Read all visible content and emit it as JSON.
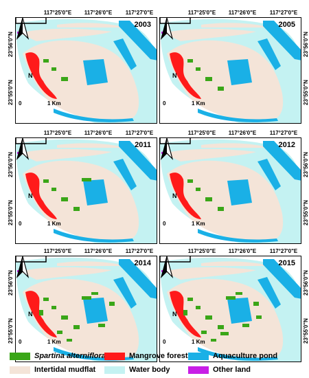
{
  "axes": {
    "lon_labels": [
      "117°25'0\"E",
      "117°26'0\"E",
      "117°27'0\"E"
    ],
    "lat_labels": [
      "23°56'0\"N",
      "23°55'0\"N"
    ]
  },
  "north_label": "N",
  "scale": {
    "zero": "0",
    "km": "1 Km"
  },
  "panels": [
    {
      "year": "2003"
    },
    {
      "year": "2005"
    },
    {
      "year": "2011"
    },
    {
      "year": "2012"
    },
    {
      "year": "2014"
    },
    {
      "year": "2015"
    }
  ],
  "legend": [
    {
      "label": "Spartina alterniflora",
      "color": "#3aa618",
      "italic": true
    },
    {
      "label": "Mangrove forest",
      "color": "#ff1a1a",
      "italic": false
    },
    {
      "label": "Aquaculture pond",
      "color": "#1ab0e6",
      "italic": false
    },
    {
      "label": "Intertidal mudflat",
      "color": "#f4e4d8",
      "italic": false
    },
    {
      "label": "Water body",
      "color": "#c4f2f2",
      "italic": false
    },
    {
      "label": "Other land",
      "color": "#c81ee6",
      "italic": false
    }
  ],
  "colors": {
    "water": "#c4f2f2",
    "mudflat": "#f4e4d8",
    "mangrove": "#ff1a1a",
    "spartina": "#3aa618",
    "pond": "#1ab0e6",
    "other": "#c81ee6"
  },
  "spartina_amount": [
    0.2,
    0.25,
    0.35,
    0.3,
    0.75,
    0.95
  ]
}
